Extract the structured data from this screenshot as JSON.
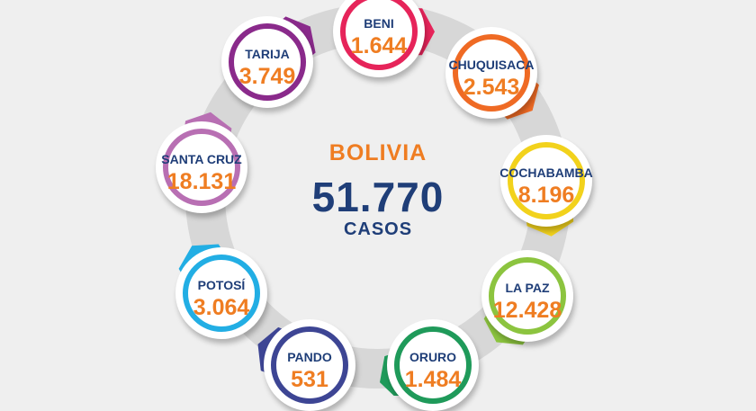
{
  "center": {
    "title": "BOLIVIA",
    "total": "51.770",
    "unit": "CASOS"
  },
  "regions": [
    {
      "name": "BENI",
      "value": "1.644",
      "color": "#e6245a"
    },
    {
      "name": "CHUQUISACA",
      "value": "2.543",
      "color": "#ef6a24"
    },
    {
      "name": "COCHABAMBA",
      "value": "8.196",
      "color": "#f2d21c"
    },
    {
      "name": "LA PAZ",
      "value": "12.428",
      "color": "#8cc43f"
    },
    {
      "name": "ORURO",
      "value": "1.484",
      "color": "#1f9a5a"
    },
    {
      "name": "PANDO",
      "value": "531",
      "color": "#3d4594"
    },
    {
      "name": "POTOSÍ",
      "value": "3.064",
      "color": "#22aee4"
    },
    {
      "name": "SANTA CRUZ",
      "value": "18.131",
      "color": "#b86fb3"
    },
    {
      "name": "TARIJA",
      "value": "3.749",
      "color": "#8a2a8b"
    }
  ]
}
